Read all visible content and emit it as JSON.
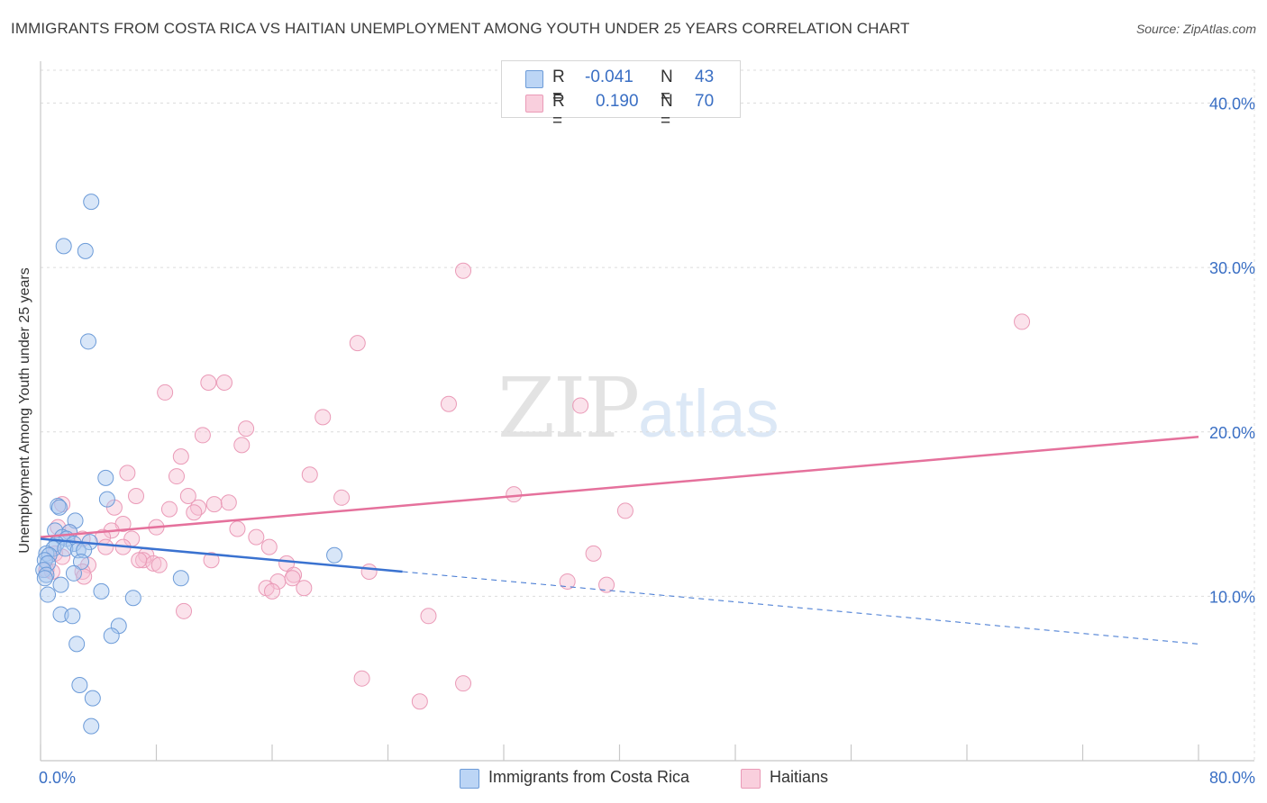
{
  "title": "IMMIGRANTS FROM COSTA RICA VS HAITIAN UNEMPLOYMENT AMONG YOUTH UNDER 25 YEARS CORRELATION CHART",
  "source": "Source: ZipAtlas.com",
  "watermark": {
    "zip": "ZIP",
    "atlas": "atlas"
  },
  "legend": {
    "series1": {
      "r_label": "R =",
      "r_value": "-0.041",
      "n_label": "N =",
      "n_value": "43"
    },
    "series2": {
      "r_label": "R =",
      "r_value": "0.190",
      "n_label": "N =",
      "n_value": "70"
    }
  },
  "colors": {
    "blue_fill": "#a9c8f0",
    "blue_stroke": "#6c9bd8",
    "blue_line": "#3a72d0",
    "pink_fill": "#f6bfd2",
    "pink_stroke": "#ea9ab7",
    "pink_line": "#e5719c",
    "axis_text": "#3a6fc4",
    "grid": "#dcdcdc"
  },
  "chart_data": {
    "type": "scatter",
    "title": "IMMIGRANTS FROM COSTA RICA VS HAITIAN UNEMPLOYMENT AMONG YOUTH UNDER 25 YEARS CORRELATION CHART",
    "xlabel": "",
    "ylabel": "Unemployment Among Youth under 25 years",
    "xlim": [
      0,
      80
    ],
    "ylim": [
      0,
      42
    ],
    "x_tick_labels": [
      "0.0%",
      "80.0%"
    ],
    "y_ticks": [
      10,
      20,
      30,
      40
    ],
    "y_tick_labels": [
      "10.0%",
      "20.0%",
      "30.0%",
      "40.0%"
    ],
    "grid": true,
    "series": [
      {
        "name": "Immigrants from Costa Rica",
        "color": "#a9c8f0",
        "points": [
          [
            3.5,
            34
          ],
          [
            1.6,
            31.3
          ],
          [
            3.1,
            31
          ],
          [
            3.3,
            25.5
          ],
          [
            4.5,
            17.2
          ],
          [
            4.6,
            15.9
          ],
          [
            1.2,
            15.5
          ],
          [
            1.3,
            15.4
          ],
          [
            2.4,
            14.6
          ],
          [
            1.0,
            14.0
          ],
          [
            2.0,
            13.9
          ],
          [
            1.5,
            13.6
          ],
          [
            1.8,
            13.5
          ],
          [
            1.1,
            13.2
          ],
          [
            2.3,
            13.2
          ],
          [
            3.4,
            13.3
          ],
          [
            0.9,
            12.9
          ],
          [
            1.7,
            12.9
          ],
          [
            2.6,
            12.8
          ],
          [
            3.0,
            12.8
          ],
          [
            0.4,
            12.6
          ],
          [
            0.6,
            12.5
          ],
          [
            0.3,
            12.2
          ],
          [
            0.5,
            12.0
          ],
          [
            2.8,
            12.1
          ],
          [
            0.2,
            11.6
          ],
          [
            0.4,
            11.3
          ],
          [
            2.3,
            11.4
          ],
          [
            0.3,
            11.1
          ],
          [
            1.4,
            10.7
          ],
          [
            0.5,
            10.1
          ],
          [
            4.2,
            10.3
          ],
          [
            6.4,
            9.9
          ],
          [
            9.7,
            11.1
          ],
          [
            20.3,
            12.5
          ],
          [
            1.4,
            8.9
          ],
          [
            2.2,
            8.8
          ],
          [
            5.4,
            8.2
          ],
          [
            4.9,
            7.6
          ],
          [
            2.5,
            7.1
          ],
          [
            2.7,
            4.6
          ],
          [
            3.6,
            3.8
          ],
          [
            3.5,
            2.1
          ]
        ]
      },
      {
        "name": "Haitians",
        "color": "#f6bfd2",
        "points": [
          [
            29.2,
            29.8
          ],
          [
            67.8,
            26.7
          ],
          [
            21.9,
            25.4
          ],
          [
            8.6,
            22.4
          ],
          [
            11.6,
            23
          ],
          [
            12.7,
            23
          ],
          [
            28.2,
            21.7
          ],
          [
            37.3,
            21.6
          ],
          [
            19.5,
            20.9
          ],
          [
            14.2,
            20.2
          ],
          [
            11.2,
            19.8
          ],
          [
            13.9,
            19.2
          ],
          [
            9.7,
            18.5
          ],
          [
            6.0,
            17.5
          ],
          [
            9.4,
            17.3
          ],
          [
            18.6,
            17.4
          ],
          [
            6.6,
            16.1
          ],
          [
            10.2,
            16.1
          ],
          [
            20.8,
            16.0
          ],
          [
            32.7,
            16.2
          ],
          [
            12.0,
            15.6
          ],
          [
            13.0,
            15.7
          ],
          [
            1.5,
            15.6
          ],
          [
            5.1,
            15.4
          ],
          [
            8.9,
            15.3
          ],
          [
            10.9,
            15.4
          ],
          [
            10.6,
            15.1
          ],
          [
            40.4,
            15.2
          ],
          [
            5.7,
            14.4
          ],
          [
            4.9,
            14.0
          ],
          [
            1.2,
            14.2
          ],
          [
            2.0,
            13.9
          ],
          [
            8.0,
            14.2
          ],
          [
            13.6,
            14.1
          ],
          [
            14.9,
            13.6
          ],
          [
            4.3,
            13.6
          ],
          [
            2.9,
            13.5
          ],
          [
            6.3,
            13.5
          ],
          [
            4.5,
            13.0
          ],
          [
            5.7,
            13.0
          ],
          [
            15.8,
            13.0
          ],
          [
            1.0,
            12.6
          ],
          [
            1.5,
            12.4
          ],
          [
            7.3,
            12.5
          ],
          [
            7.1,
            12.2
          ],
          [
            7.8,
            12.0
          ],
          [
            6.8,
            12.2
          ],
          [
            11.8,
            12.2
          ],
          [
            17.0,
            12.0
          ],
          [
            38.2,
            12.6
          ],
          [
            3.3,
            11.9
          ],
          [
            2.9,
            11.5
          ],
          [
            0.8,
            11.5
          ],
          [
            0.4,
            11.6
          ],
          [
            8.2,
            11.9
          ],
          [
            17.5,
            11.3
          ],
          [
            22.7,
            11.5
          ],
          [
            16.4,
            10.9
          ],
          [
            17.4,
            11.1
          ],
          [
            3.0,
            11.2
          ],
          [
            15.6,
            10.5
          ],
          [
            18.2,
            10.5
          ],
          [
            16.0,
            10.3
          ],
          [
            36.4,
            10.9
          ],
          [
            39.1,
            10.7
          ],
          [
            9.9,
            9.1
          ],
          [
            26.8,
            8.8
          ],
          [
            22.2,
            5.0
          ],
          [
            29.2,
            4.7
          ],
          [
            26.2,
            3.6
          ]
        ]
      }
    ],
    "trend_lines": [
      {
        "series": "Immigrants from Costa Rica",
        "solid": [
          [
            0,
            13.5
          ],
          [
            25,
            11.5
          ]
        ],
        "dashed": [
          [
            25,
            11.5
          ],
          [
            80,
            7.1
          ]
        ]
      },
      {
        "series": "Haitians",
        "solid": [
          [
            0,
            13.6
          ],
          [
            80,
            19.7
          ]
        ]
      }
    ]
  }
}
